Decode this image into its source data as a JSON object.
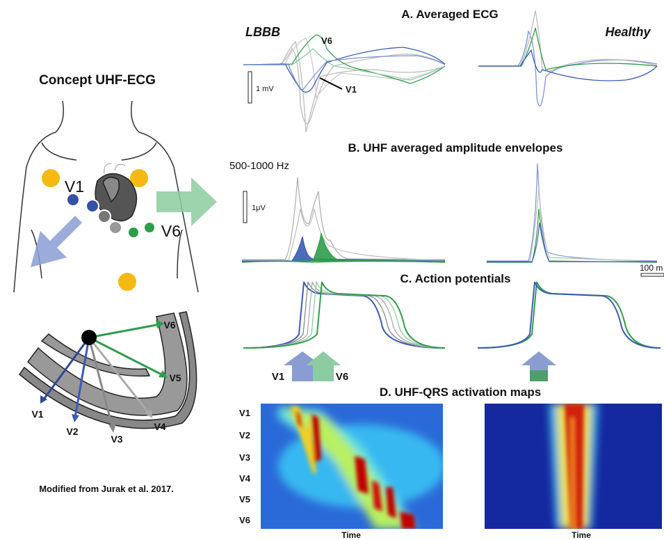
{
  "concept": {
    "title": "Concept UHF-ECG",
    "torso_labels": [
      "V1",
      "V6"
    ],
    "vector_labels": [
      "V6",
      "V5",
      "V4",
      "V3",
      "V2",
      "V1"
    ],
    "citation": "Modified from Jurak et al. 2017."
  },
  "panel_a": {
    "title": "A. Averaged ECG",
    "left_label": "LBBB",
    "right_label": "Healthy",
    "lead_labels": [
      "V6",
      "V1"
    ],
    "scale": "1 mV"
  },
  "panel_b": {
    "title": "B. UHF averaged amplitude envelopes",
    "band": "500-1000 Hz",
    "scale": "1μV",
    "time_scale": "100 m"
  },
  "panel_c": {
    "title": "C. Action potentials",
    "lead_labels": [
      "V1",
      "V6"
    ]
  },
  "panel_d": {
    "title": "D. UHF-QRS activation maps",
    "row_labels": [
      "V1",
      "V2",
      "V3",
      "V4",
      "V5",
      "V6"
    ],
    "x_labels": [
      "Time",
      "Time"
    ]
  }
}
